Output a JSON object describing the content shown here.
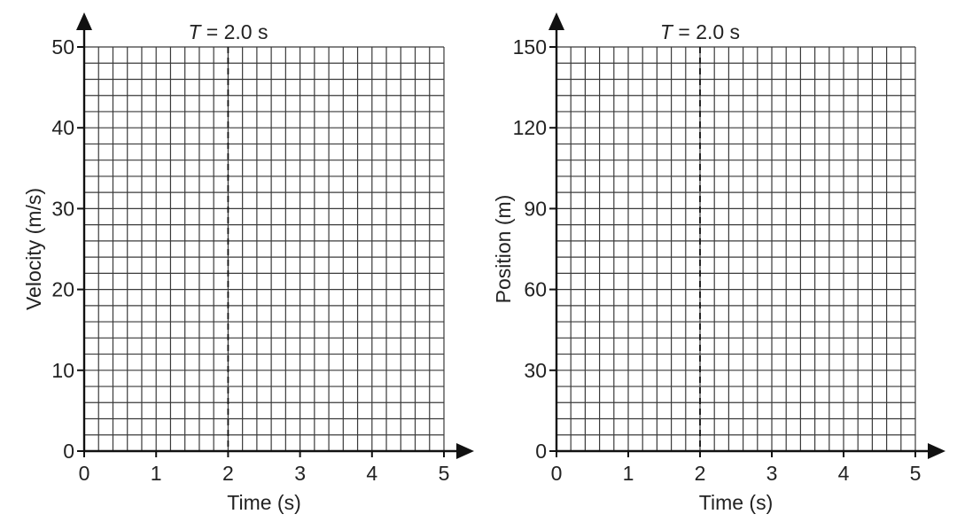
{
  "chart_data": [
    {
      "type": "line",
      "xlabel": "Time (s)",
      "ylabel": "Velocity (m/s)",
      "xlim": [
        0,
        5
      ],
      "ylim": [
        0,
        50
      ],
      "xticks": [
        0,
        1,
        2,
        3,
        4,
        5
      ],
      "yticks": [
        0,
        10,
        20,
        30,
        40,
        50
      ],
      "x_minor_step": 0.2,
      "y_minor_step": 2,
      "grid": true,
      "series": [],
      "marker": {
        "x": 2.0,
        "label": "T = 2.0 s",
        "label_var": "T",
        "label_rest": " = 2.0 s",
        "style": "dashed"
      }
    },
    {
      "type": "line",
      "xlabel": "Time (s)",
      "ylabel": "Position (m)",
      "xlim": [
        0,
        5
      ],
      "ylim": [
        0,
        150
      ],
      "xticks": [
        0,
        1,
        2,
        3,
        4,
        5
      ],
      "yticks": [
        0,
        30,
        60,
        90,
        120,
        150
      ],
      "x_minor_step": 0.2,
      "y_minor_step": 6,
      "grid": true,
      "series": [],
      "marker": {
        "x": 2.0,
        "label": "T = 2.0 s",
        "label_var": "T",
        "label_rest": " = 2.0 s",
        "style": "dashed"
      }
    }
  ]
}
